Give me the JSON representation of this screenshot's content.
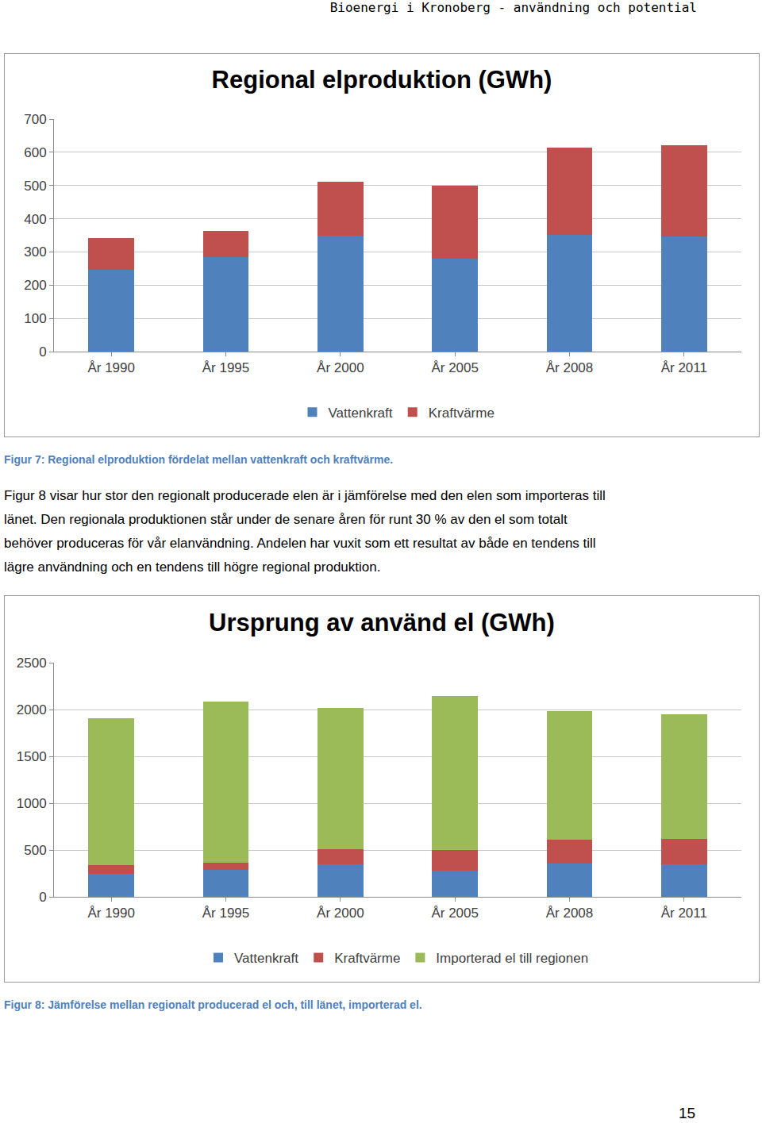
{
  "header": "Bioenergi i Kronoberg - användning och potential",
  "chart_data": [
    {
      "type": "bar",
      "title": "Regional elproduktion (GWh)",
      "categories": [
        "År 1990",
        "År 1995",
        "År 2000",
        "År 2005",
        "År 2008",
        "År 2011"
      ],
      "series": [
        {
          "name": "Vattenkraft",
          "color": "#4f81bd",
          "values": [
            245,
            285,
            350,
            280,
            352,
            347
          ]
        },
        {
          "name": "Kraftvärme",
          "color": "#c0504d",
          "values": [
            97,
            77,
            162,
            220,
            261,
            273
          ]
        }
      ],
      "ylim": [
        0,
        700
      ],
      "yticks": [
        0,
        100,
        200,
        300,
        400,
        500,
        600,
        700
      ],
      "stacked": true,
      "grid": true,
      "legend": "bottom"
    },
    {
      "type": "bar",
      "title": "Ursprung av använd el (GWh)",
      "categories": [
        "År 1990",
        "År 1995",
        "År 2000",
        "År 2005",
        "År 2008",
        "År 2011"
      ],
      "series": [
        {
          "name": "Vattenkraft",
          "color": "#4f81bd",
          "values": [
            245,
            285,
            350,
            280,
            352,
            347
          ]
        },
        {
          "name": "Kraftvärme",
          "color": "#c0504d",
          "values": [
            97,
            77,
            162,
            220,
            261,
            273
          ]
        },
        {
          "name": "Importerad el till regionen",
          "color": "#9bbb59",
          "values": [
            1562,
            1724,
            1508,
            1644,
            1374,
            1325
          ]
        }
      ],
      "ylim": [
        0,
        2500
      ],
      "yticks": [
        0,
        500,
        1000,
        1500,
        2000,
        2500
      ],
      "stacked": true,
      "grid": true,
      "legend": "bottom"
    }
  ],
  "captions": [
    "Figur 7: Regional elproduktion fördelat mellan vattenkraft och kraftvärme.",
    "Figur 8: Jämförelse mellan regionalt producerad el och, till länet, importerad el."
  ],
  "paragraph": [
    "Figur 8 visar hur stor den regionalt producerade elen är i jämförelse med den elen som importeras till",
    "länet. Den regionala produktionen står under de senare åren för runt 30 % av den el som totalt",
    "behöver produceras för vår elanvändning. Andelen har vuxit som ett resultat av både en tendens till",
    "lägre användning och en tendens till högre regional produktion."
  ],
  "page_number": 15
}
